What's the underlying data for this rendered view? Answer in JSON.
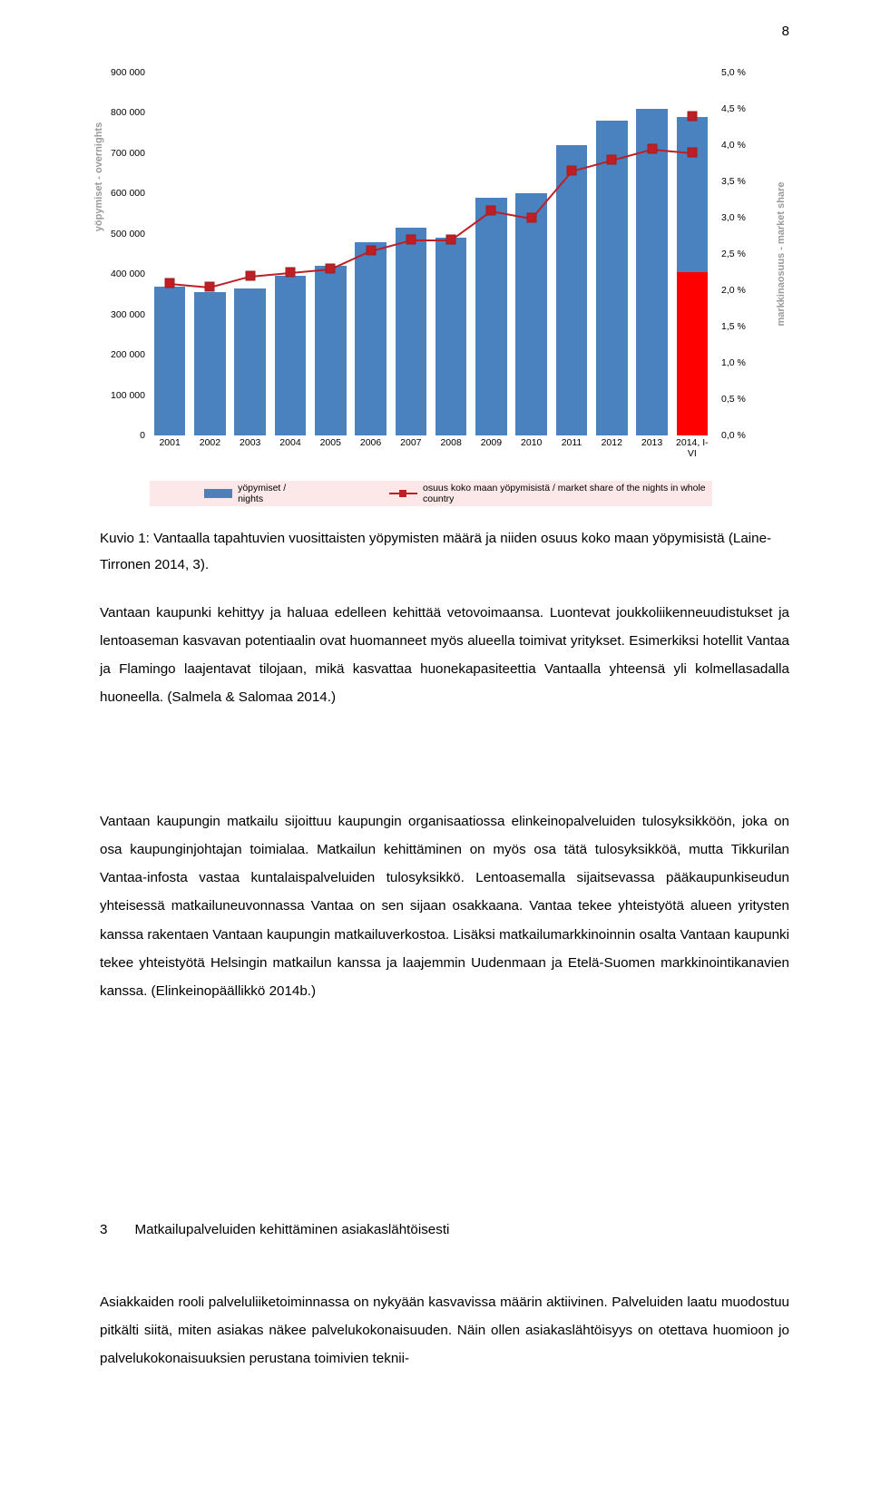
{
  "page_number": "8",
  "chart": {
    "type": "bar+line",
    "background_color": "#ffffff",
    "grid_color": "#d7d7d7",
    "bar_color": "#4a81bf",
    "highlight_bar_color": "#ff0000",
    "line_color": "#bf1f24",
    "marker_style": "square",
    "marker_color": "#bf1f24",
    "y_axis_left": {
      "label": "yöpymiset - overnights",
      "min": 0,
      "max": 900000,
      "step": 100000,
      "label_fontsize": 11,
      "tick_fontsize": 10.5
    },
    "y_axis_right": {
      "label": "markkinaosuus - market share",
      "min": 0.0,
      "max": 5.0,
      "step": 0.5,
      "suffix": " %",
      "label_fontsize": 11,
      "tick_fontsize": 10.5
    },
    "x_tick_fontsize": 10.5,
    "categories": [
      "2001",
      "2002",
      "2003",
      "2004",
      "2005",
      "2006",
      "2007",
      "2008",
      "2009",
      "2010",
      "2011",
      "2012",
      "2013",
      "2014, I-VI"
    ],
    "bar_values": [
      370000,
      355000,
      365000,
      395000,
      420000,
      480000,
      515000,
      490000,
      590000,
      600000,
      720000,
      780000,
      810000,
      790000
    ],
    "bar_values_last_highlight": 405000,
    "line_values_pct": [
      2.1,
      2.05,
      2.2,
      2.25,
      2.3,
      2.55,
      2.7,
      2.7,
      3.1,
      3.0,
      3.65,
      3.8,
      3.95,
      3.9
    ],
    "last_marker_pct": 4.4,
    "legend": {
      "background_color": "#fce8e8",
      "series_a": "yöpymiset / nights",
      "series_b": "osuus koko maan yöpymisistä / market share of the nights in whole country"
    }
  },
  "caption": "Kuvio 1: Vantaalla tapahtuvien vuosittaisten yöpymisten määrä ja niiden osuus koko maan yöpymisistä (Laine-Tirronen 2014, 3).",
  "paragraph1": "Vantaan kaupunki kehittyy ja haluaa edelleen kehittää vetovoimaansa. Luontevat joukkoliikenneuudistukset ja lentoaseman kasvavan potentiaalin ovat huomanneet myös alueella toimivat yritykset. Esimerkiksi hotellit Vantaa ja Flamingo laajentavat tilojaan, mikä kasvattaa huonekapasiteettia Vantaalla yhteensä yli kolmellasadalla huoneella. (Salmela & Salomaa 2014.)",
  "paragraph2": "Vantaan kaupungin matkailu sijoittuu kaupungin organisaatiossa elinkeinopalveluiden tulosyksikköön, joka on osa kaupunginjohtajan toimialaa. Matkailun kehittäminen on myös osa tätä tulosyksikköä, mutta Tikkurilan Vantaa-infosta vastaa kuntalaispalveluiden tulosyksikkö. Lentoasemalla sijaitsevassa pääkaupunkiseudun yhteisessä matkailuneuvonnassa Vantaa on sen sijaan osakkaana. Vantaa tekee yhteistyötä alueen yritysten kanssa rakentaen Vantaan kaupungin matkailuverkostoa. Lisäksi matkailumarkkinoinnin osalta Vantaan kaupunki tekee yhteistyötä Helsingin matkailun kanssa ja laajemmin Uudenmaan ja Etelä-Suomen markkinointikanavien kanssa. (Elinkeinopäällikkö 2014b.)",
  "heading": {
    "number": "3",
    "title": "Matkailupalveluiden kehittäminen asiakaslähtöisesti"
  },
  "paragraph3": "Asiakkaiden rooli palveluliiketoiminnassa on nykyään kasvavissa määrin aktiivinen. Palveluiden laatu muodostuu pitkälti siitä, miten asiakas näkee palvelukokonaisuuden. Näin ollen asiakaslähtöisyys on otettava huomioon jo palvelukokonaisuuksien perustana toimivien teknii-",
  "y_axis_right_ticks": [
    "0,0 %",
    "0,5 %",
    "1,0 %",
    "1,5 %",
    "2,0 %",
    "2,5 %",
    "3,0 %",
    "3,5 %",
    "4,0 %",
    "4,5 %",
    "5,0 %"
  ],
  "y_axis_left_ticks": [
    "0",
    "100 000",
    "200 000",
    "300 000",
    "400 000",
    "500 000",
    "600 000",
    "700 000",
    "800 000",
    "900 000"
  ]
}
